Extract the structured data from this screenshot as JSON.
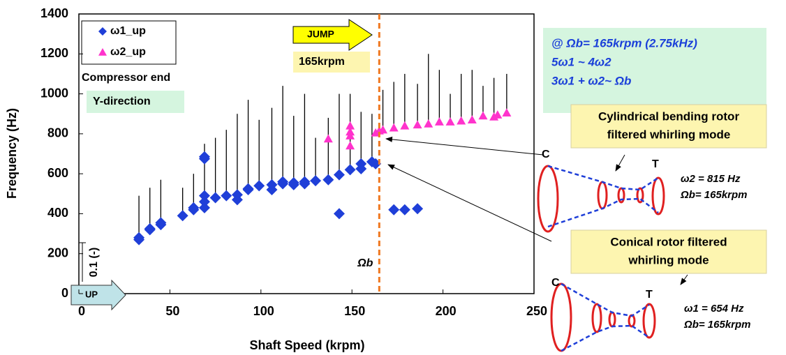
{
  "chart_data": {
    "type": "scatter",
    "x_label": "Shaft Speed (krpm)",
    "y_label": "Frequency (Hz)",
    "xlim": [
      0,
      250
    ],
    "ylim": [
      0,
      1400
    ],
    "xticks": [
      0,
      50,
      100,
      150,
      200,
      250
    ],
    "yticks": [
      0,
      200,
      400,
      600,
      800,
      1000,
      1200,
      1400
    ],
    "series": [
      {
        "name": "ω1_up",
        "color": "#1f3fd8",
        "marker": "diamond",
        "x": [
          33,
          33,
          39,
          39,
          45,
          45,
          57,
          63,
          63,
          69,
          69,
          69,
          69,
          69,
          75,
          81,
          87,
          87,
          93,
          93,
          99,
          106,
          106,
          112,
          112,
          118,
          118,
          124,
          124,
          130,
          137,
          143,
          143,
          149,
          155,
          155,
          161,
          163,
          173,
          179,
          186
        ],
        "values": [
          270,
          280,
          320,
          325,
          345,
          355,
          390,
          420,
          430,
          430,
          460,
          490,
          675,
          685,
          480,
          490,
          470,
          495,
          520,
          525,
          540,
          520,
          545,
          550,
          560,
          545,
          555,
          550,
          560,
          565,
          570,
          400,
          595,
          620,
          625,
          650,
          660,
          650,
          420,
          420,
          425
        ]
      },
      {
        "name": "ω2_up",
        "color": "#ff33cc",
        "marker": "triangle",
        "x": [
          137,
          149,
          149,
          149,
          149,
          163,
          165,
          167,
          173,
          179,
          186,
          192,
          198,
          204,
          210,
          216,
          222,
          228,
          230,
          235
        ],
        "values": [
          775,
          740,
          790,
          810,
          840,
          805,
          815,
          820,
          830,
          840,
          845,
          850,
          860,
          860,
          865,
          870,
          890,
          885,
          895,
          905
        ]
      }
    ],
    "peaks": {
      "color": "#000000",
      "x": [
        33,
        39,
        45,
        57,
        63,
        69,
        75,
        81,
        87,
        93,
        99,
        106,
        112,
        118,
        124,
        130,
        137,
        143,
        149,
        155,
        161,
        167,
        173,
        179,
        186,
        192,
        198,
        204,
        210,
        216,
        222,
        228,
        235
      ],
      "from": [
        270,
        320,
        350,
        390,
        420,
        430,
        480,
        490,
        480,
        520,
        540,
        540,
        560,
        555,
        560,
        570,
        570,
        600,
        620,
        640,
        660,
        820,
        830,
        840,
        850,
        850,
        860,
        860,
        870,
        880,
        890,
        895,
        905
      ],
      "to": [
        490,
        530,
        570,
        530,
        600,
        750,
        780,
        820,
        900,
        970,
        870,
        930,
        1040,
        890,
        1000,
        780,
        880,
        1000,
        1000,
        910,
        900,
        1020,
        1060,
        1100,
        1050,
        1200,
        1120,
        1000,
        1100,
        1120,
        1040,
        1080,
        1100
      ]
    },
    "vline": {
      "x": 165,
      "color": "#f07820",
      "label": "Ωb"
    },
    "annotations": {
      "compressor_end": "Compressor end",
      "direction": "Y-direction",
      "jump": "JUMP",
      "jump_speed": "165krpm",
      "scale": "0.1 (-)",
      "up": "UP",
      "condition": [
        "@ Ωb= 165krpm (2.75kHz)",
        "5ω1 ~ 4ω2",
        "3ω1 + ω2~ Ωb"
      ],
      "mode1": {
        "title": [
          "Cylindrical bending rotor",
          "filtered whirling mode"
        ],
        "c": "C",
        "t": "T",
        "freq": "ω2 = 815 Hz",
        "speed": "Ωb= 165krpm"
      },
      "mode2": {
        "title": [
          "Conical rotor filtered",
          "whirling mode"
        ],
        "c": "C",
        "t": "T",
        "freq": "ω1 = 654 Hz",
        "speed": "Ωb= 165krpm"
      }
    }
  }
}
